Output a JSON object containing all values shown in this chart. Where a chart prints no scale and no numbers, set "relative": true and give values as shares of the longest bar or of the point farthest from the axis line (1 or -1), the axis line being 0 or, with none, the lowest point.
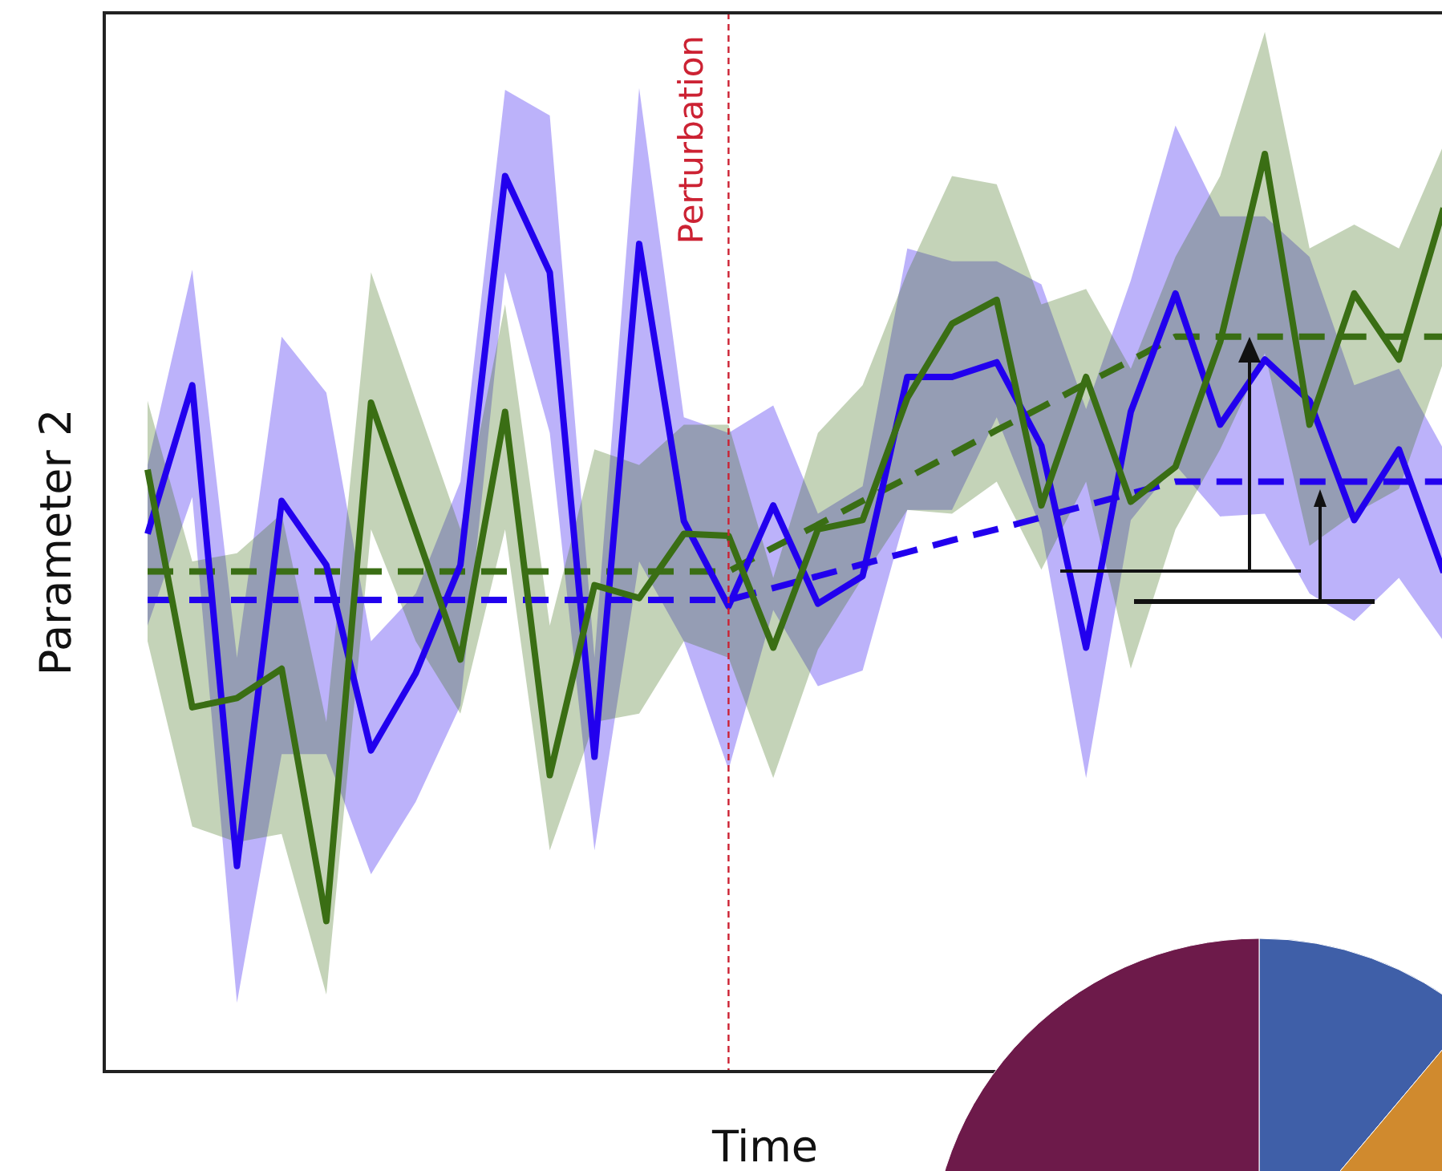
{
  "chart_data": {
    "type": "line",
    "relative": true,
    "xlabel": "Time",
    "ylabel": "Parameter 2",
    "categories": [
      null,
      null,
      null,
      null,
      null,
      null,
      null,
      null,
      null,
      null,
      null,
      null,
      null,
      null,
      null,
      null,
      null,
      null,
      null,
      null,
      null,
      null,
      null,
      null,
      null,
      null,
      null,
      null,
      null,
      null
    ],
    "series": [
      {
        "color": "#2200ee",
        "values": [
          0.586,
          0.748,
          0.224,
          0.622,
          0.552,
          0.35,
          0.434,
          0.552,
          0.976,
          0.871,
          0.343,
          0.902,
          0.6,
          0.507,
          0.617,
          0.51,
          0.54,
          0.757,
          0.757,
          0.773,
          0.682,
          0.462,
          0.719,
          0.848,
          0.705,
          0.776,
          0.731,
          0.601,
          0.678,
          0.544
        ],
        "upper": [
          0.661,
          0.874,
          0.451,
          0.801,
          0.74,
          0.469,
          0.521,
          0.643,
          1.07,
          1.042,
          0.451,
          1.072,
          0.713,
          0.696,
          0.726,
          0.608,
          0.638,
          0.897,
          0.883,
          0.883,
          0.858,
          0.722,
          0.862,
          1.031,
          0.932,
          0.932,
          0.888,
          0.748,
          0.766,
          0.678
        ],
        "lower": [
          0.486,
          0.626,
          0.075,
          0.346,
          0.346,
          0.215,
          0.294,
          0.399,
          0.871,
          0.696,
          0.241,
          0.556,
          0.469,
          0.329,
          0.503,
          0.42,
          0.437,
          0.612,
          0.612,
          0.713,
          0.591,
          0.32,
          0.601,
          0.661,
          0.605,
          0.608,
          0.521,
          0.491,
          0.538,
          0.469
        ]
      },
      {
        "color": "#3a6e14",
        "values": [
          0.656,
          0.397,
          0.407,
          0.439,
          0.164,
          0.729,
          0.589,
          0.449,
          0.719,
          0.323,
          0.53,
          0.516,
          0.586,
          0.584,
          0.462,
          0.591,
          0.601,
          0.734,
          0.815,
          0.841,
          0.617,
          0.757,
          0.621,
          0.659,
          0.795,
          1.0,
          0.705,
          0.848,
          0.776,
          0.941
        ],
        "upper": [
          0.731,
          0.556,
          0.565,
          0.608,
          0.381,
          0.871,
          0.731,
          0.591,
          0.836,
          0.486,
          0.678,
          0.661,
          0.705,
          0.705,
          0.538,
          0.696,
          0.748,
          0.871,
          0.976,
          0.967,
          0.836,
          0.853,
          0.766,
          0.888,
          0.976,
          1.133,
          0.897,
          0.923,
          0.897,
          1.01
        ],
        "lower": [
          0.469,
          0.267,
          0.25,
          0.259,
          0.084,
          0.591,
          0.469,
          0.39,
          0.591,
          0.241,
          0.381,
          0.39,
          0.469,
          0.451,
          0.32,
          0.46,
          0.538,
          0.612,
          0.608,
          0.643,
          0.547,
          0.643,
          0.439,
          0.591,
          0.678,
          0.783,
          0.573,
          0.608,
          0.635,
          0.774
        ]
      },
      {
        "color": "#2200ee",
        "line_style": "dashed",
        "values": [
          0.514,
          0.514,
          0.514,
          0.514,
          0.514,
          0.514,
          0.514,
          0.514,
          0.514,
          0.514,
          0.514,
          0.514,
          0.514,
          0.514,
          0.527,
          0.54,
          0.553,
          0.566,
          0.579,
          0.591,
          0.604,
          0.617,
          0.63,
          0.643,
          0.643,
          0.643,
          0.643,
          0.643,
          0.643,
          0.643
        ]
      },
      {
        "color": "#3a6e14",
        "line_style": "dashed",
        "values": [
          0.545,
          0.545,
          0.545,
          0.545,
          0.545,
          0.545,
          0.545,
          0.545,
          0.545,
          0.545,
          0.545,
          0.545,
          0.545,
          0.545,
          0.571,
          0.596,
          0.622,
          0.647,
          0.673,
          0.699,
          0.724,
          0.75,
          0.775,
          0.801,
          0.801,
          0.801,
          0.801,
          0.801,
          0.801,
          0.801
        ]
      }
    ],
    "annotations": [
      "Perturbation"
    ],
    "marker": "none",
    "line_style": "solid"
  }
}
